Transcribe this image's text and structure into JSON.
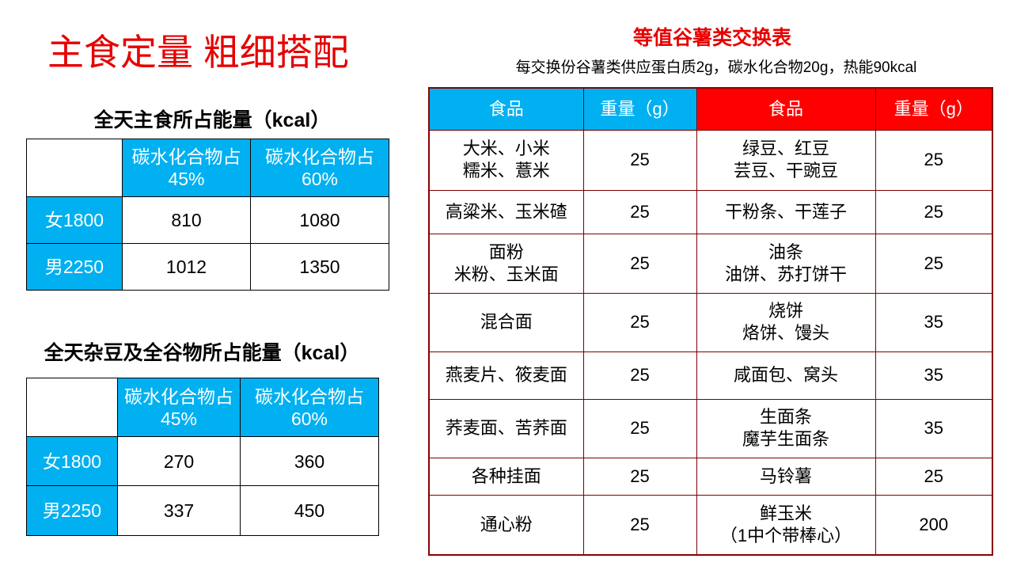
{
  "title": "主食定量 粗细搭配",
  "table1": {
    "caption": "全天主食所占能量（kcal）",
    "header": [
      [
        "碳水化合物占",
        "45%"
      ],
      [
        "碳水化合物占",
        "60%"
      ]
    ],
    "rows": [
      [
        "女1800",
        810,
        1080
      ],
      [
        "男2250",
        1012,
        1350
      ]
    ]
  },
  "table2": {
    "caption": "全天杂豆及全谷物所占能量（kcal）",
    "header": [
      [
        "碳水化合物占",
        "45%"
      ],
      [
        "碳水化合物占",
        "60%"
      ]
    ],
    "rows": [
      [
        "女1800",
        270,
        360
      ],
      [
        "男2250",
        337,
        450
      ]
    ]
  },
  "exchange": {
    "title": "等值谷薯类交换表",
    "subtitle": "每交换份谷薯类供应蛋白质2g，碳水化合物20g，热能90kcal",
    "header": [
      "食品",
      "重量（g）",
      "食品",
      "重量（g）"
    ],
    "rows": [
      [
        [
          "大米、小米",
          "糯米、薏米"
        ],
        25,
        [
          "绿豆、红豆",
          "芸豆、干豌豆"
        ],
        25
      ],
      [
        [
          "高粱米、玉米碴"
        ],
        25,
        [
          "干粉条、干莲子"
        ],
        25
      ],
      [
        [
          "面粉",
          "米粉、玉米面"
        ],
        25,
        [
          "油条",
          "油饼、苏打饼干"
        ],
        25
      ],
      [
        [
          "混合面"
        ],
        25,
        [
          "烧饼",
          "烙饼、馒头"
        ],
        35
      ],
      [
        [
          "燕麦片、筱麦面"
        ],
        25,
        [
          "咸面包、窝头"
        ],
        35
      ],
      [
        [
          "荞麦面、苦荞面"
        ],
        25,
        [
          "生面条",
          "魔芋生面条"
        ],
        35
      ],
      [
        [
          "各种挂面"
        ],
        25,
        [
          "马铃薯"
        ],
        25
      ],
      [
        [
          "通心粉"
        ],
        25,
        [
          "鲜玉米",
          "（1中个带棒心）"
        ],
        200
      ]
    ]
  }
}
